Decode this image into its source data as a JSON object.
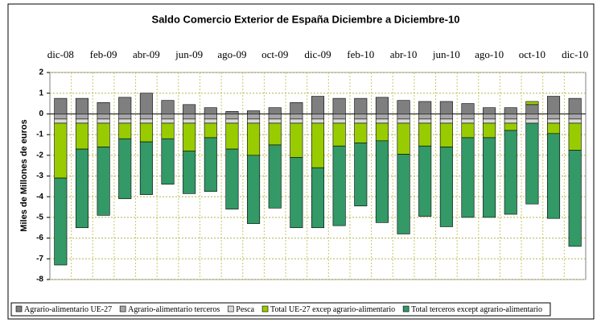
{
  "chart_data": {
    "type": "stacked-bar",
    "title": "Saldo Comercio Exterior de España Diciembre a Diciembre-10",
    "y_label": "Miles de Millones de euros",
    "categories": [
      "dic-08",
      null,
      "feb-09",
      null,
      "abr-09",
      null,
      "jun-09",
      null,
      "ago-09",
      null,
      "oct-09",
      null,
      "dic-09",
      null,
      "feb-10",
      null,
      "abr-10",
      null,
      "jun-10",
      null,
      "ago-10",
      null,
      "oct-10",
      null,
      "dic-10"
    ],
    "series": [
      {
        "name": "Agrario-alimentario UE-27",
        "color": "#7f7f7f",
        "values": [
          0.75,
          0.75,
          0.55,
          0.8,
          1.0,
          0.65,
          0.45,
          0.3,
          0.12,
          0.15,
          0.3,
          0.55,
          0.85,
          0.75,
          0.75,
          0.8,
          0.65,
          0.6,
          0.6,
          0.5,
          0.3,
          0.3,
          0.45,
          0.85,
          0.75
        ]
      },
      {
        "name": "Agrario-alimentario terceros",
        "color": "#a6a6a6",
        "values": [
          -0.25,
          -0.25,
          -0.25,
          -0.25,
          -0.25,
          -0.25,
          -0.25,
          -0.25,
          -0.25,
          -0.25,
          -0.25,
          -0.25,
          -0.25,
          -0.25,
          -0.25,
          -0.25,
          -0.25,
          -0.25,
          -0.25,
          -0.25,
          -0.25,
          -0.25,
          -0.25,
          -0.25,
          -0.25
        ]
      },
      {
        "name": "Pesca",
        "color": "#d9d9d9",
        "values": [
          -0.2,
          -0.2,
          -0.2,
          -0.2,
          -0.2,
          -0.2,
          -0.2,
          -0.2,
          -0.2,
          -0.2,
          -0.2,
          -0.2,
          -0.2,
          -0.2,
          -0.2,
          -0.2,
          -0.2,
          -0.2,
          -0.2,
          -0.2,
          -0.2,
          -0.2,
          -0.2,
          -0.2,
          -0.2
        ]
      },
      {
        "name": "Total UE-27 excep agrario-alimentario",
        "color": "#99cc00",
        "values": [
          -2.65,
          -1.25,
          -1.15,
          -0.75,
          -0.9,
          -0.75,
          -1.35,
          -0.7,
          -1.25,
          -1.55,
          -1.05,
          -1.65,
          -2.15,
          -1.1,
          -0.95,
          -0.85,
          -1.5,
          -1.1,
          -1.15,
          -0.7,
          -0.7,
          -0.35,
          0.15,
          -0.5,
          -1.3
        ]
      },
      {
        "name": "Total terceros except agrario-alimentario",
        "color": "#339966",
        "values": [
          -4.2,
          -3.8,
          -3.3,
          -2.9,
          -2.55,
          -2.2,
          -2.05,
          -2.6,
          -2.9,
          -3.3,
          -3.05,
          -3.4,
          -2.9,
          -3.85,
          -3.05,
          -3.95,
          -3.85,
          -3.4,
          -3.85,
          -3.85,
          -3.85,
          -4.05,
          -3.9,
          -4.1,
          -4.65
        ]
      }
    ],
    "ylim": [
      -8,
      2
    ],
    "yticks": [
      2,
      1,
      0,
      -1,
      -2,
      -3,
      -4,
      -5,
      -6,
      -7,
      -8
    ],
    "grid": true
  }
}
